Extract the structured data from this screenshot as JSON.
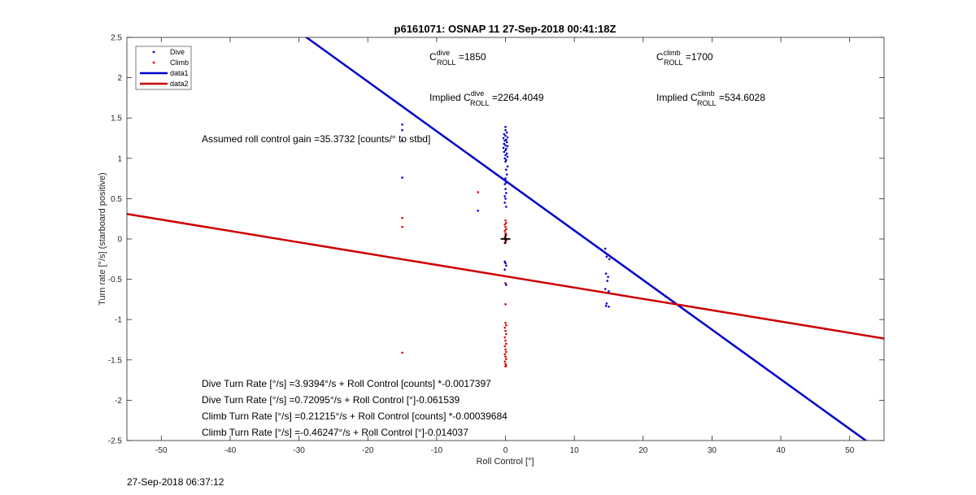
{
  "chart_data": {
    "type": "scatter",
    "title": "p6161071: OSNAP 11 27-Sep-2018 00:41:18Z",
    "xlabel": "Roll Control [°]",
    "ylabel": "Turn rate [°/s] (starboard positive)",
    "xlim": [
      -55,
      55
    ],
    "ylim": [
      -2.5,
      2.5
    ],
    "xticks": [
      -50,
      -40,
      -30,
      -20,
      -10,
      0,
      10,
      20,
      30,
      40,
      50
    ],
    "xtick_labels": [
      "-50",
      "-40",
      "-30",
      "-20",
      "-10",
      "0",
      "10",
      "20",
      "30",
      "40",
      "50"
    ],
    "yticks": [
      2.5,
      2,
      1.5,
      1,
      0.5,
      0,
      -0.5,
      -1,
      -1.5,
      -2,
      -2.5
    ],
    "ytick_labels": [
      "2.5",
      "2",
      "1.5",
      "1",
      "0.5",
      "0",
      "-0.5",
      "-1",
      "-1.5",
      "-2",
      "-2.5"
    ],
    "grid": false,
    "legend_position": "top-left",
    "legend": [
      "Dive",
      "Climb",
      "data1",
      "data2"
    ],
    "colors": {
      "dive": "#0000cc",
      "climb": "#dd0000",
      "data1": "#0000cc",
      "data2": "#cc0000",
      "marker": "#000000"
    },
    "series": [
      {
        "name": "Dive",
        "kind": "points",
        "color": "#0000cc",
        "points": [
          [
            -15,
            1.42
          ],
          [
            -15,
            1.35
          ],
          [
            -15,
            1.22
          ],
          [
            -15,
            0.76
          ],
          [
            -4,
            0.35
          ],
          [
            0,
            1.39
          ],
          [
            0,
            1.35
          ],
          [
            0.2,
            1.32
          ],
          [
            -0.2,
            1.3
          ],
          [
            0,
            1.28
          ],
          [
            0.3,
            1.26
          ],
          [
            -0.3,
            1.25
          ],
          [
            0.1,
            1.23
          ],
          [
            -0.1,
            1.22
          ],
          [
            0.2,
            1.2
          ],
          [
            -0.2,
            1.18
          ],
          [
            0,
            1.16
          ],
          [
            0.3,
            1.15
          ],
          [
            -0.3,
            1.13
          ],
          [
            0.1,
            1.12
          ],
          [
            0,
            1.1
          ],
          [
            -0.2,
            1.08
          ],
          [
            0.2,
            1.06
          ],
          [
            0,
            1.04
          ],
          [
            0.3,
            1.02
          ],
          [
            -0.1,
            1.0
          ],
          [
            0.1,
            0.98
          ],
          [
            0,
            0.96
          ],
          [
            0.3,
            0.9
          ],
          [
            0.1,
            0.86
          ],
          [
            0.2,
            0.8
          ],
          [
            0,
            0.75
          ],
          [
            0.1,
            0.7
          ],
          [
            -0.1,
            0.68
          ],
          [
            0,
            0.62
          ],
          [
            0.1,
            0.57
          ],
          [
            -0.1,
            0.53
          ],
          [
            0,
            0.5
          ],
          [
            -0.1,
            0.45
          ],
          [
            0.1,
            0.4
          ],
          [
            -0.1,
            -0.28
          ],
          [
            0,
            -0.3
          ],
          [
            0.1,
            -0.33
          ],
          [
            -0.1,
            -0.38
          ],
          [
            0,
            -0.55
          ],
          [
            0.1,
            -0.57
          ],
          [
            14.5,
            -0.12
          ],
          [
            14.7,
            -0.22
          ],
          [
            15.1,
            -0.25
          ],
          [
            14.6,
            -0.43
          ],
          [
            14.9,
            -0.47
          ],
          [
            14.8,
            -0.52
          ],
          [
            14.5,
            -0.62
          ],
          [
            15.0,
            -0.65
          ],
          [
            14.7,
            -0.8
          ],
          [
            15.0,
            -0.84
          ],
          [
            14.6,
            -0.83
          ]
        ]
      },
      {
        "name": "Climb",
        "kind": "points",
        "color": "#dd0000",
        "points": [
          [
            -15,
            0.26
          ],
          [
            -15,
            0.15
          ],
          [
            -15,
            -1.41
          ],
          [
            -4,
            0.58
          ],
          [
            0,
            0.23
          ],
          [
            0.1,
            0.2
          ],
          [
            -0.1,
            0.18
          ],
          [
            0,
            0.15
          ],
          [
            0.1,
            0.12
          ],
          [
            -0.1,
            0.1
          ],
          [
            0,
            0.07
          ],
          [
            0.1,
            0.05
          ],
          [
            -0.1,
            0.02
          ],
          [
            0,
            0.0
          ],
          [
            0.1,
            -0.02
          ],
          [
            -0.1,
            -0.05
          ],
          [
            0,
            -0.55
          ],
          [
            0,
            -0.81
          ],
          [
            0,
            -1.04
          ],
          [
            0.1,
            -1.07
          ],
          [
            -0.1,
            -1.1
          ],
          [
            0,
            -1.14
          ],
          [
            0.1,
            -1.18
          ],
          [
            -0.1,
            -1.22
          ],
          [
            0,
            -1.26
          ],
          [
            0.1,
            -1.3
          ],
          [
            -0.1,
            -1.33
          ],
          [
            0,
            -1.37
          ],
          [
            0.1,
            -1.4
          ],
          [
            -0.1,
            -1.43
          ],
          [
            0,
            -1.46
          ],
          [
            0.1,
            -1.49
          ],
          [
            -0.1,
            -1.52
          ],
          [
            0,
            -1.55
          ],
          [
            0.1,
            -1.57
          ],
          [
            0,
            -1.58
          ]
        ]
      },
      {
        "name": "data1",
        "kind": "line",
        "color": "#0000cc",
        "slope": -0.061539,
        "intercept": 0.72095,
        "x_range": [
          -55,
          55
        ]
      },
      {
        "name": "data2",
        "kind": "line",
        "color": "#cc0000",
        "slope": -0.014037,
        "intercept": -0.46247,
        "x_range": [
          -55,
          55
        ]
      }
    ],
    "center_marker": {
      "x": 0,
      "y": 0,
      "symbol": "+"
    },
    "annotations": {
      "c_dive_prefix": "C",
      "c_dive_sup": "dive",
      "c_dive_sub": "ROLL",
      "c_dive_value": " =1850",
      "c_climb_prefix": "C",
      "c_climb_sup": "climb",
      "c_climb_sub": "ROLL",
      "c_climb_value": " =1700",
      "impl_dive_prefix": "Implied C",
      "impl_dive_sup": "dive",
      "impl_dive_sub": "ROLL",
      "impl_dive_value": " =2264.4049",
      "impl_climb_prefix": "Implied C",
      "impl_climb_sup": "climb",
      "impl_climb_sub": "ROLL",
      "impl_climb_value": " =534.6028",
      "gain": "Assumed roll control gain =35.3732 [counts/° to stbd]",
      "eq1": "Dive Turn Rate [°/s] =3.9394°/s + Roll Control [counts] *-0.0017397",
      "eq2": "Dive Turn Rate [°/s] =0.72095°/s + Roll Control [°]-0.061539",
      "eq3": "Climb Turn Rate [°/s] =0.21215°/s + Roll Control [counts] *-0.00039684",
      "eq4": "Climb Turn Rate [°/s] =-0.46247°/s + Roll Control [°]-0.014037"
    }
  },
  "footer": {
    "timestamp": "27-Sep-2018 06:37:12"
  }
}
